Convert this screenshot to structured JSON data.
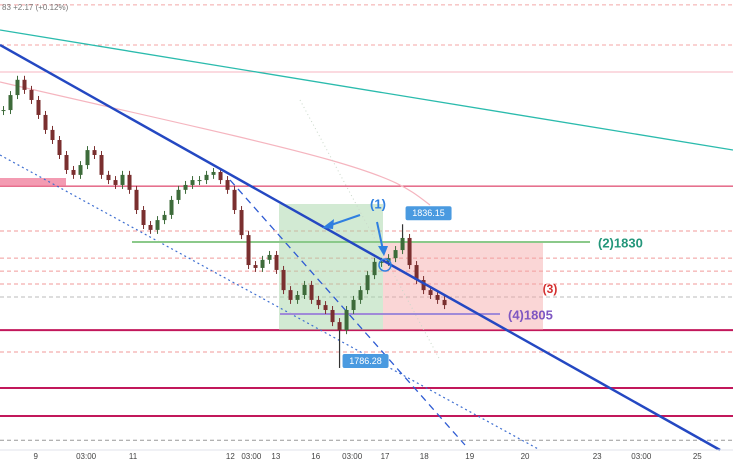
{
  "chart_data": {
    "type": "candlestick",
    "header": "83 +2.17 (+0.12%)",
    "xlim": [
      -0.5,
      104.2
    ],
    "ylim": [
      1757.8,
      1914
    ],
    "xticks": [
      {
        "value": 4.6,
        "label": "9"
      },
      {
        "value": 11.8,
        "label": "03:00"
      },
      {
        "value": 18.5,
        "label": "11"
      },
      {
        "value": 32.4,
        "label": "12"
      },
      {
        "value": 35.4,
        "label": "03:00"
      },
      {
        "value": 38.9,
        "label": "13"
      },
      {
        "value": 44.6,
        "label": "16"
      },
      {
        "value": 49.8,
        "label": "03:00"
      },
      {
        "value": 54.5,
        "label": "17"
      },
      {
        "value": 60.1,
        "label": "18"
      },
      {
        "value": 66.6,
        "label": "19"
      },
      {
        "value": 74.5,
        "label": "20"
      },
      {
        "value": 84.8,
        "label": "23"
      },
      {
        "value": 91.1,
        "label": "03:00"
      },
      {
        "value": 99.1,
        "label": "25"
      }
    ],
    "up_color": "#3d6b3a",
    "down_color": "#7a2f2f",
    "values": [
      1875.8,
      1881.0,
      1886.3,
      1882.8,
      1879.3,
      1874.1,
      1868.9,
      1865.4,
      1860.2,
      1855.0,
      1853.3,
      1856.7,
      1861.9,
      1860.2,
      1853.3,
      1851.5,
      1849.8,
      1853.3,
      1848.1,
      1841.1,
      1835.9,
      1834.2,
      1837.6,
      1839.4,
      1844.6,
      1848.1,
      1849.8,
      1851.5,
      1851.5,
      1853.3,
      1854.3,
      1851.5,
      1848.1,
      1841.1,
      1832.4,
      1822.0,
      1821.0,
      1823.8,
      1825.5,
      1820.3,
      1813.3,
      1809.9,
      1811.6,
      1815.1,
      1809.9,
      1808.1,
      1806.4,
      1802.2,
      1799.4,
      1806.4,
      1809.9,
      1813.3,
      1818.5,
      1823.1,
      1823.1,
      1824.4,
      1827.2,
      1831.4,
      1822.0,
      1816.8,
      1813.3,
      1811.6,
      1809.9,
      1808.1
    ],
    "annotations": [
      {
        "x": 57,
        "value": 1836.15
      },
      {
        "x": 48,
        "value": 1786.28
      }
    ],
    "levels": [
      {
        "value": 1912.3,
        "color": "#f4a6a6",
        "dash": true
      },
      {
        "value": 1898.4,
        "color": "#f4a6a6",
        "dash": true
      },
      {
        "value": 1889.0,
        "color": "#f7b6c0",
        "dash": false
      },
      {
        "value": 1849.4,
        "color": "#d81b4a",
        "dash": false
      },
      {
        "value": 1833.8,
        "color": "#f19a9a",
        "dash": true
      },
      {
        "value": 1824.4,
        "color": "#f19a9a",
        "dash": true
      },
      {
        "value": 1819.9,
        "color": "#f19a9a",
        "dash": true
      },
      {
        "value": 1815.4,
        "color": "#f19a9a",
        "dash": true
      },
      {
        "value": 1810.9,
        "color": "#bbbbbb",
        "dash": true
      },
      {
        "value": 1799.4,
        "color": "#c2185b",
        "dash": false,
        "bold": true
      },
      {
        "value": 1791.8,
        "color": "#f19a9a",
        "dash": true
      },
      {
        "value": 1779.3,
        "color": "#c2185b",
        "dash": false,
        "bold": true
      },
      {
        "value": 1769.6,
        "color": "#c2185b",
        "dash": false,
        "bold": true
      },
      {
        "value": 1761.2,
        "color": "#999999",
        "dash": true
      }
    ],
    "targets": [
      {
        "value": 1830,
        "label": "(2)1830",
        "color": "#8bc98a",
        "text_color": "#23967a"
      },
      {
        "value": 1805,
        "label": "(4)1805",
        "color": "#a08ad8",
        "text_color": "#7e57c2"
      }
    ],
    "notes": [
      "(1)",
      "(3)"
    ]
  }
}
